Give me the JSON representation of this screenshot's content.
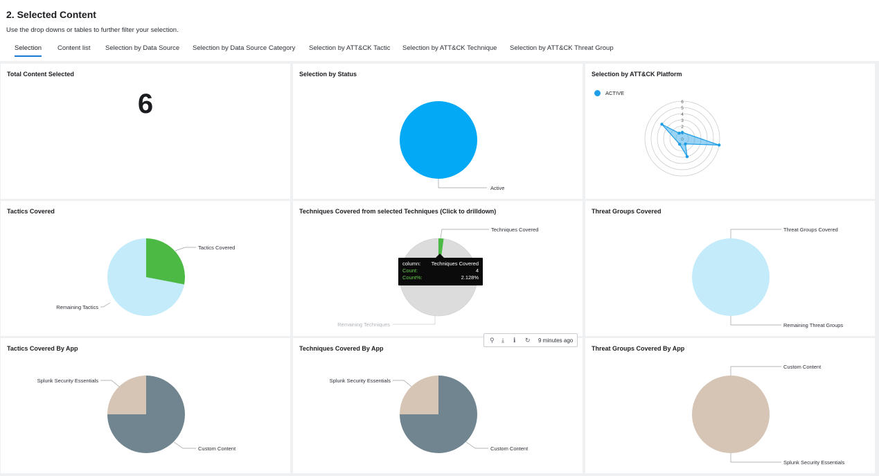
{
  "header": {
    "title": "2. Selected Content",
    "subtitle": "Use the drop downs or tables to further filter your selection."
  },
  "tabs": [
    {
      "label": "Selection",
      "active": true
    },
    {
      "label": "Content list"
    },
    {
      "label": "Selection by Data Source"
    },
    {
      "label": "Selection by Data Source Category"
    },
    {
      "label": "Selection by ATT&CK Tactic"
    },
    {
      "label": "Selection by ATT&CK Technique"
    },
    {
      "label": "Selection by ATT&CK Threat Group"
    }
  ],
  "panels": {
    "total": {
      "title": "Total Content Selected",
      "value": "6"
    },
    "status": {
      "title": "Selection by Status",
      "slice_label": "Active"
    },
    "platform": {
      "title": "Selection by ATT&CK Platform",
      "legend": "ACTIVE",
      "axis_ticks": [
        "6",
        "5",
        "4",
        "3",
        "2",
        "1",
        "0"
      ]
    },
    "tactics": {
      "title": "Tactics Covered",
      "covered_label": "Tactics Covered",
      "remaining_label": "Remaining Tactics"
    },
    "techniques": {
      "title": "Techniques Covered from selected Techniques (Click to drilldown)",
      "covered_label": "Techniques Covered",
      "remaining_label": "Remaining Techniques",
      "tooltip": {
        "column_key": "column:",
        "column_val": "Techniques Covered",
        "count_key": "Count:",
        "count_val": "4",
        "pct_key": "Count%:",
        "pct_val": "2.128%"
      }
    },
    "threat": {
      "title": "Threat Groups Covered",
      "covered_label": "Threat Groups Covered",
      "remaining_label": "Remaining Threat Groups"
    },
    "tactics_app": {
      "title": "Tactics Covered By App",
      "label_a": "Splunk Security Essentials",
      "label_b": "Custom Content"
    },
    "techniques_app": {
      "title": "Techniques Covered By App",
      "label_a": "Splunk Security Essentials",
      "label_b": "Custom Content"
    },
    "threat_app": {
      "title": "Threat Groups Covered By App",
      "label_a": "Custom Content",
      "label_b": "Splunk Security Essentials"
    }
  },
  "toolbar": {
    "time": "9 minutes ago",
    "icons": [
      "search-icon",
      "download-icon",
      "info-icon",
      "refresh-icon"
    ]
  },
  "colors": {
    "status_blue": "#03a9f4",
    "tactics_green": "#4cb944",
    "light_blue": "#c3ebfa",
    "grey": "#dcdcdc",
    "slate": "#708590",
    "tan": "#d6c4b5",
    "radar": "#1e9ee6"
  },
  "chart_data": [
    {
      "type": "pie",
      "name_ref": "Selection by Status",
      "categories": [
        "Active"
      ],
      "values": [
        6
      ]
    },
    {
      "type": "radar",
      "name_ref": "Selection by ATT&CK Platform",
      "series": [
        {
          "name": "ACTIVE",
          "values": [
            1,
            6,
            1,
            3,
            1,
            4,
            1
          ]
        }
      ],
      "ylim": [
        0,
        6
      ]
    },
    {
      "type": "pie",
      "name_ref": "Tactics Covered",
      "categories": [
        "Tactics Covered",
        "Remaining Tactics"
      ],
      "values": [
        28,
        72
      ]
    },
    {
      "type": "pie",
      "name_ref": "Techniques Covered from selected Techniques (Click to drilldown)",
      "categories": [
        "Techniques Covered",
        "Remaining Techniques"
      ],
      "values": [
        2.128,
        97.872
      ]
    },
    {
      "type": "pie",
      "name_ref": "Threat Groups Covered",
      "categories": [
        "Threat Groups Covered",
        "Remaining Threat Groups"
      ],
      "values": [
        0,
        100
      ]
    },
    {
      "type": "pie",
      "name_ref": "Tactics Covered By App",
      "categories": [
        "Custom Content",
        "Splunk Security Essentials"
      ],
      "values": [
        75,
        25
      ]
    },
    {
      "type": "pie",
      "name_ref": "Techniques Covered By App",
      "categories": [
        "Custom Content",
        "Splunk Security Essentials"
      ],
      "values": [
        75,
        25
      ]
    },
    {
      "type": "pie",
      "name_ref": "Threat Groups Covered By App",
      "categories": [
        "Splunk Security Essentials",
        "Custom Content"
      ],
      "values": [
        100,
        0
      ]
    }
  ]
}
